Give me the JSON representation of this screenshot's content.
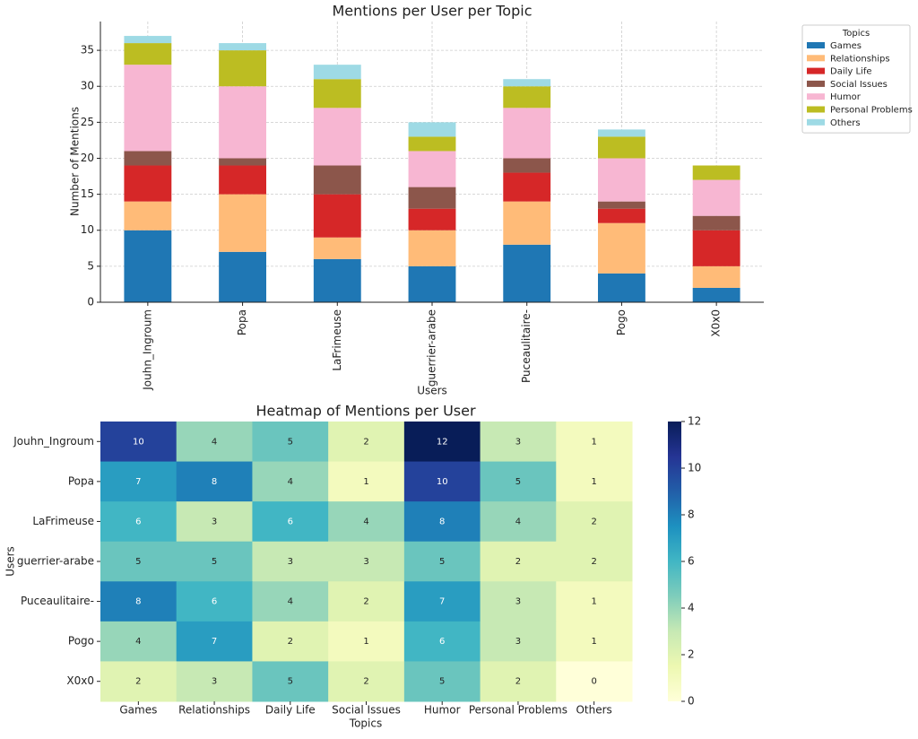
{
  "chart_data": [
    {
      "type": "stacked_bar",
      "title": "Mentions per User per Topic",
      "x_label": "Users",
      "y_label": "Number of Mentions",
      "categories": [
        "Jouhn_Ingroum",
        "Popa",
        "LaFrimeuse",
        "guerrier-arabe",
        "Puceaulitaire-",
        "Pogo",
        "X0x0"
      ],
      "series": [
        {
          "name": "Games",
          "color": "#1f77b4",
          "values": [
            10,
            7,
            6,
            5,
            8,
            4,
            2
          ]
        },
        {
          "name": "Relationships",
          "color": "#ffbb78",
          "values": [
            4,
            8,
            3,
            5,
            6,
            7,
            3
          ]
        },
        {
          "name": "Daily Life",
          "color": "#d62728",
          "values": [
            5,
            4,
            6,
            3,
            4,
            2,
            5
          ]
        },
        {
          "name": "Social Issues",
          "color": "#8c564b",
          "values": [
            2,
            1,
            4,
            3,
            2,
            1,
            2
          ]
        },
        {
          "name": "Humor",
          "color": "#f7b6d2",
          "values": [
            12,
            10,
            8,
            5,
            7,
            6,
            5
          ]
        },
        {
          "name": "Personal Problems",
          "color": "#bcbd22",
          "values": [
            3,
            5,
            4,
            2,
            3,
            3,
            2
          ]
        },
        {
          "name": "Others",
          "color": "#9edae5",
          "values": [
            1,
            1,
            2,
            2,
            1,
            1,
            0
          ]
        }
      ],
      "ylim": [
        0,
        39
      ],
      "yticks": [
        0,
        5,
        10,
        15,
        20,
        25,
        30,
        35
      ],
      "grid": true,
      "legend_title": "Topics",
      "legend_position": "outside-upper-right"
    },
    {
      "type": "heatmap",
      "title": "Heatmap of Mentions per User",
      "x_label": "Topics",
      "y_label": "Users",
      "x_categories": [
        "Games",
        "Relationships",
        "Daily Life",
        "Social Issues",
        "Humor",
        "Personal Problems",
        "Others"
      ],
      "y_categories": [
        "Jouhn_Ingroum",
        "Popa",
        "LaFrimeuse",
        "guerrier-arabe",
        "Puceaulitaire-",
        "Pogo",
        "X0x0"
      ],
      "values": [
        [
          10,
          4,
          5,
          2,
          12,
          3,
          1
        ],
        [
          7,
          8,
          4,
          1,
          10,
          5,
          1
        ],
        [
          6,
          3,
          6,
          4,
          8,
          4,
          2
        ],
        [
          5,
          5,
          3,
          3,
          5,
          2,
          2
        ],
        [
          8,
          6,
          4,
          2,
          7,
          3,
          1
        ],
        [
          4,
          7,
          2,
          1,
          6,
          3,
          1
        ],
        [
          2,
          3,
          5,
          2,
          5,
          2,
          0
        ]
      ],
      "colormap": "YlGnBu",
      "zlim": [
        0,
        12
      ],
      "colorbar_ticks": [
        0,
        2,
        4,
        6,
        8,
        10,
        12
      ]
    }
  ]
}
